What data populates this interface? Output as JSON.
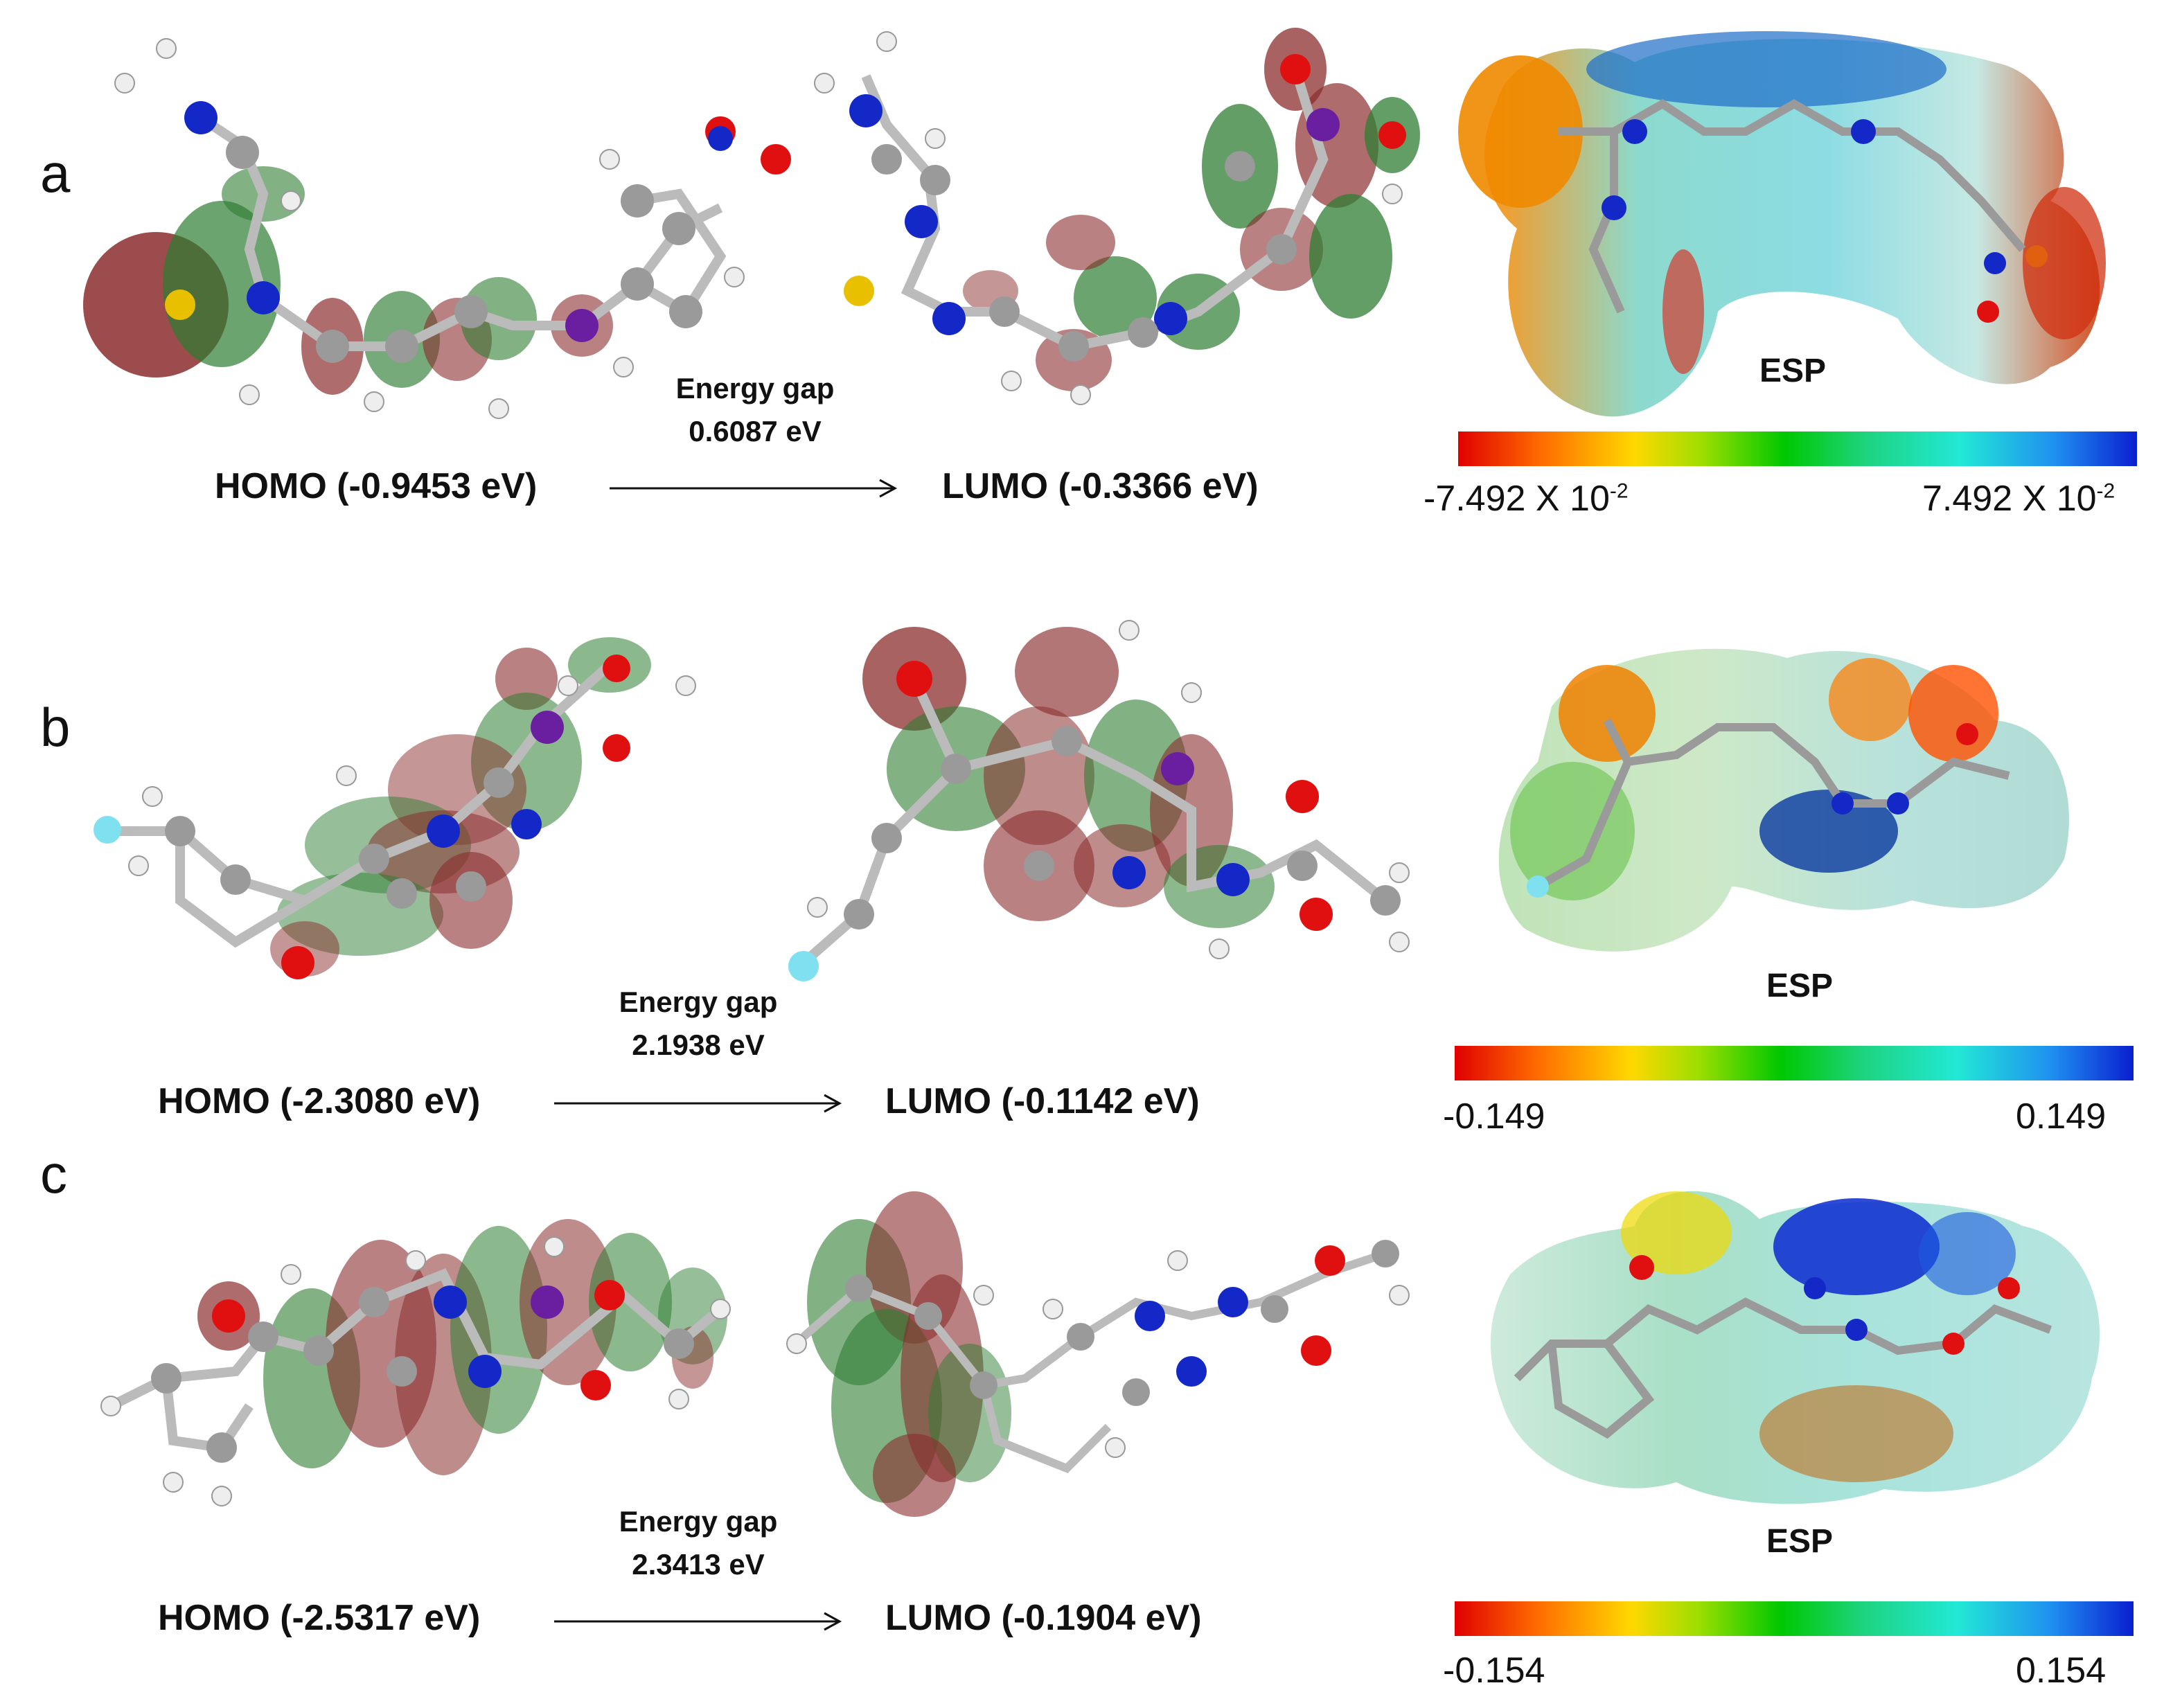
{
  "panels": [
    {
      "letter": "a",
      "homo_label": "HOMO (-0.9453 eV)",
      "lumo_label": "LUMO (-0.3366 eV)",
      "gap_title": "Energy gap",
      "gap_value": "0.6087 eV",
      "esp_title": "ESP",
      "scale_min_base": "-7.492 X 10",
      "scale_min_exp": "-2",
      "scale_max_base": "7.492 X 10",
      "scale_max_exp": "-2"
    },
    {
      "letter": "b",
      "homo_label": "HOMO (-2.3080 eV)",
      "lumo_label": "LUMO (-0.1142 eV)",
      "gap_title": "Energy gap",
      "gap_value": "2.1938 eV",
      "esp_title": "ESP",
      "scale_min": "-0.149",
      "scale_max": "0.149"
    },
    {
      "letter": "c",
      "homo_label": "HOMO (-2.5317 eV)",
      "lumo_label": "LUMO (-0.1904 eV)",
      "gap_title": "Energy gap",
      "gap_value": "2.3413 eV",
      "esp_title": "ESP",
      "scale_min": "-0.154",
      "scale_max": "0.154"
    }
  ],
  "colors": {
    "orbital_positive": "#2e7d32",
    "orbital_negative": "#8b2d2d",
    "carbon": "#9a9a9a",
    "hydrogen": "#eeeeee",
    "nitrogen": "#1428c8",
    "oxygen": "#e01010",
    "sulfur": "#e8c000",
    "fluorine": "#7fe0f0",
    "iodine_like": "#6a1fa0"
  }
}
